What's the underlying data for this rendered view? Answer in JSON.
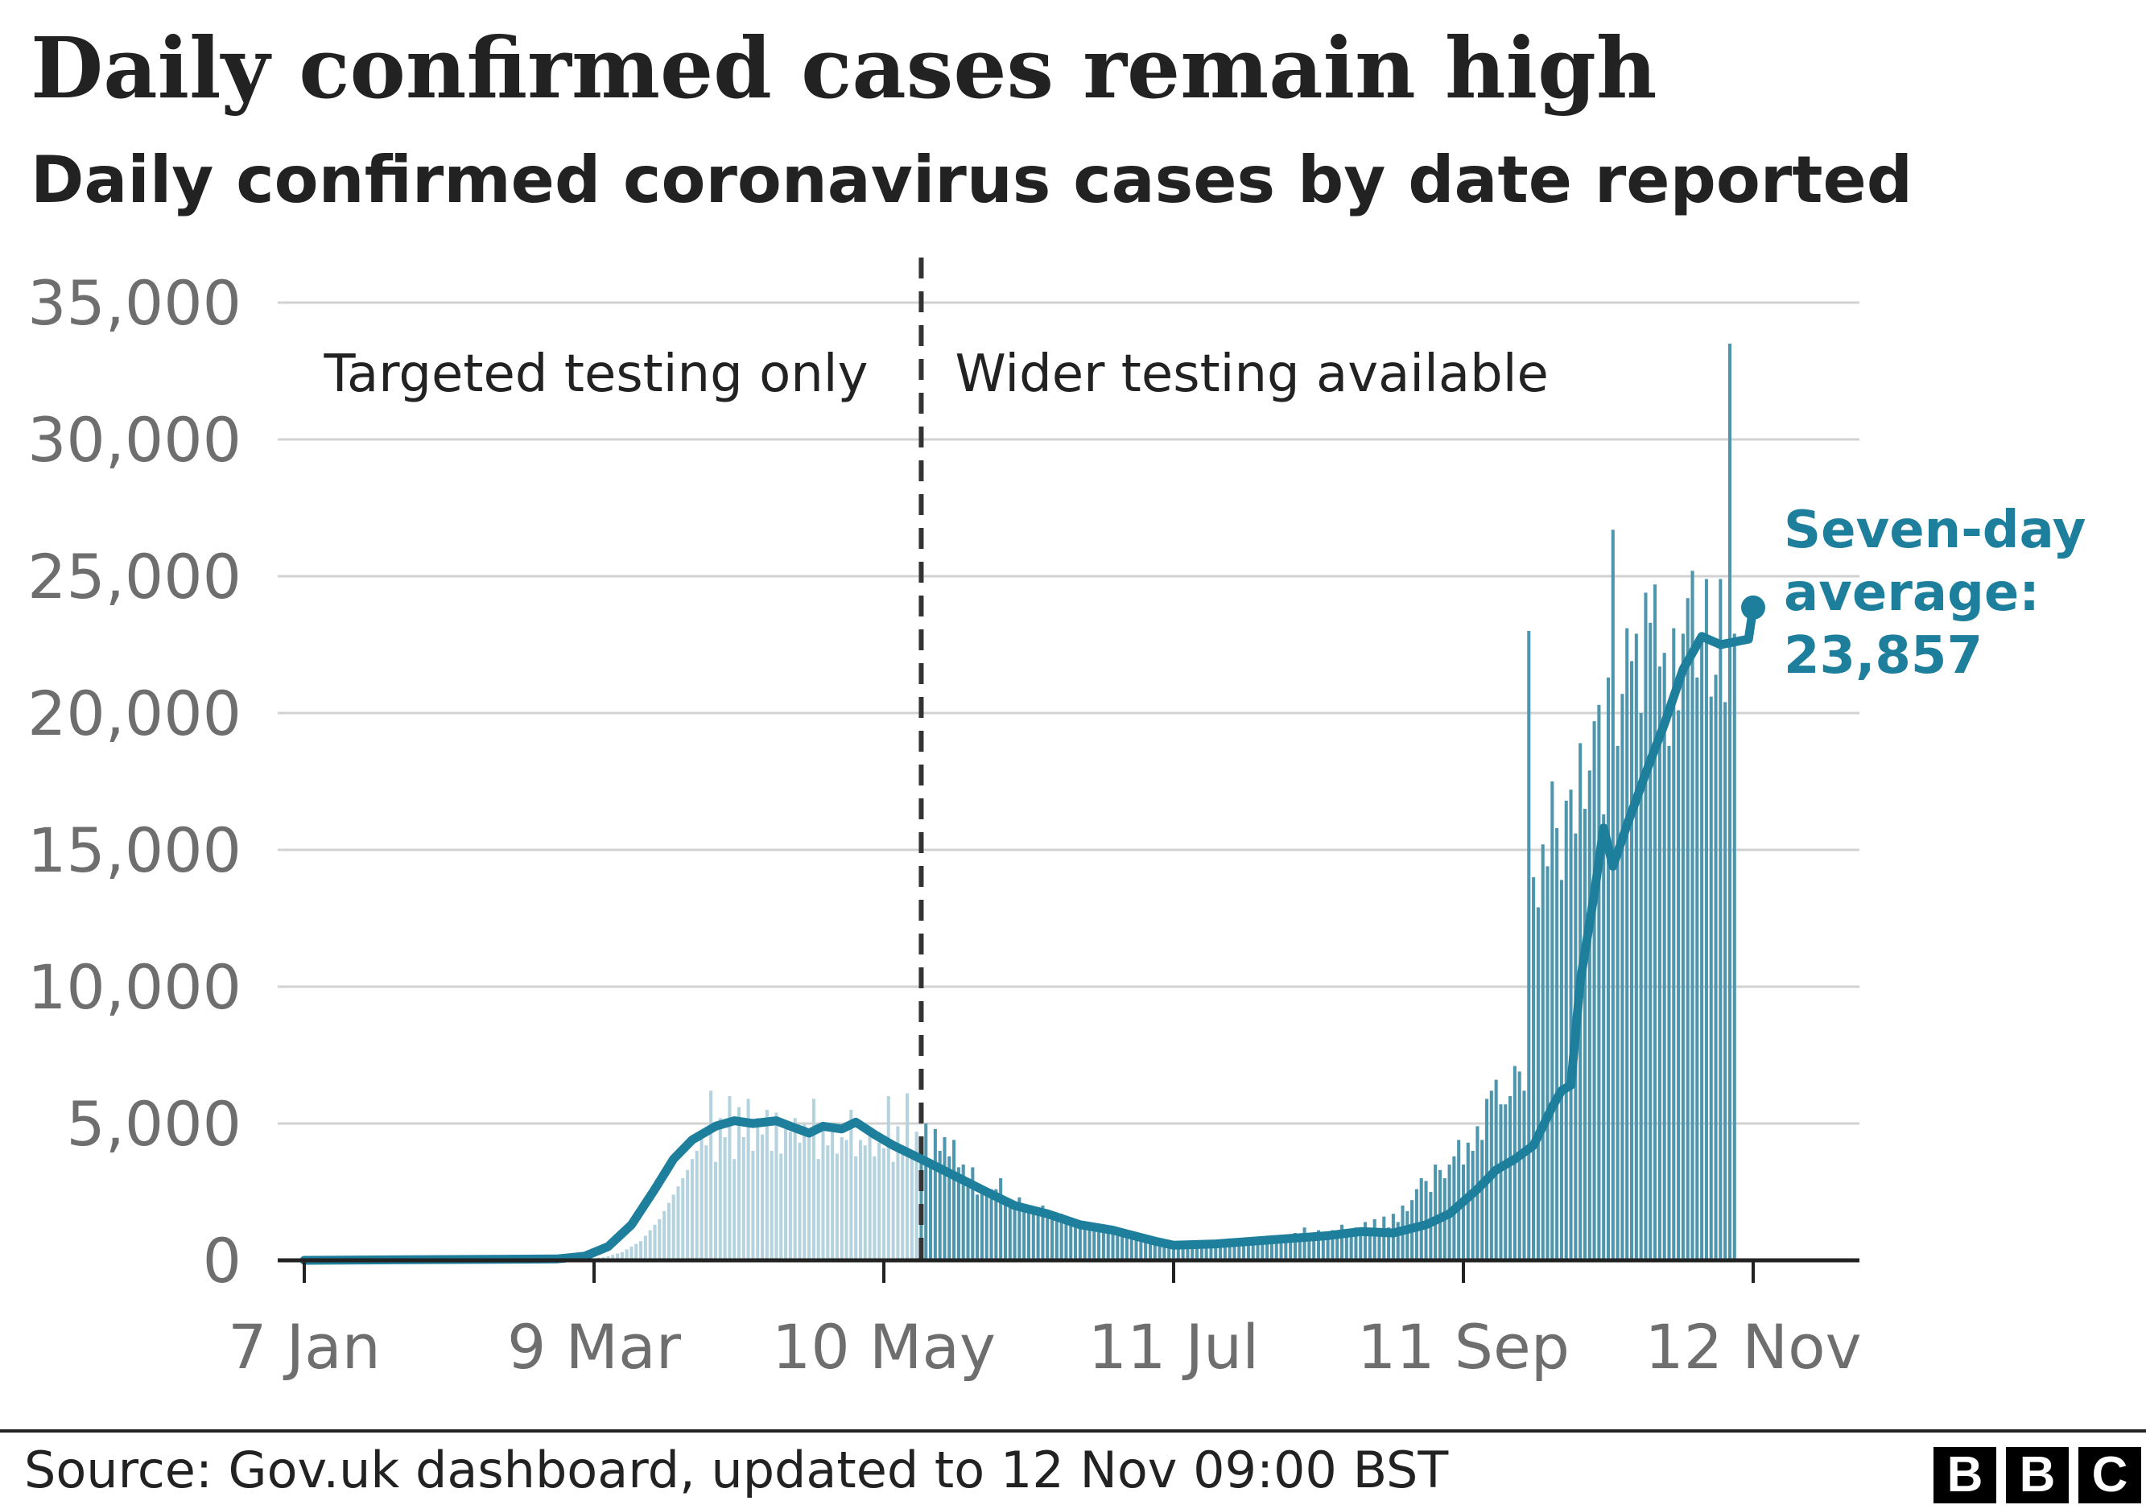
{
  "header": {
    "title": "Daily confirmed cases remain high",
    "subtitle": "Daily confirmed coronavirus cases by date reported"
  },
  "footer": {
    "source": "Source: Gov.uk dashboard, updated to 12 Nov 09:00 BST",
    "logo_letters": [
      "B",
      "B",
      "C"
    ]
  },
  "colors": {
    "bars_early": "#b5d3df",
    "bars_late": "#4e96ad",
    "average_line": "#1e7f9d",
    "annotation": "#1e7f9d",
    "grid": "#d2d2d2",
    "axis": "#222222",
    "tick_label": "#6e6e6e"
  },
  "chart_data": {
    "type": "bar",
    "x_axis": {
      "type": "date",
      "min": "2020-01-07",
      "max": "2020-11-12",
      "tick_labels": [
        "7 Jan",
        "9 Mar",
        "10 May",
        "11 Jul",
        "11 Sep",
        "12 Nov"
      ],
      "tick_dates": [
        "2020-01-07",
        "2020-03-09",
        "2020-05-10",
        "2020-07-11",
        "2020-09-11",
        "2020-11-12"
      ]
    },
    "y_axis": {
      "min": 0,
      "max": 35000,
      "ticks": [
        0,
        5000,
        10000,
        15000,
        20000,
        25000,
        30000,
        35000
      ],
      "tick_labels": [
        "0",
        "5,000",
        "10,000",
        "15,000",
        "20,000",
        "25,000",
        "30,000",
        "35,000"
      ]
    },
    "grid": true,
    "divider": {
      "date": "2020-05-18",
      "left_label": "Targeted testing only",
      "right_label": "Wider testing available"
    },
    "series": [
      {
        "type": "bar",
        "start": "2020-01-31",
        "values": [
          0,
          0,
          0,
          0,
          0,
          0,
          0,
          0,
          0,
          0,
          0,
          0,
          0,
          0,
          0,
          0,
          0,
          0,
          0,
          0,
          0,
          0,
          0,
          0,
          0,
          0,
          0,
          0,
          0,
          5,
          5,
          10,
          15,
          15,
          20,
          35,
          50,
          55,
          80,
          100,
          120,
          150,
          200,
          250,
          300,
          400,
          500,
          600,
          700,
          900,
          1100,
          1300,
          1500,
          1800,
          2100,
          2400,
          2700,
          3000,
          3300,
          3700,
          4000,
          4500,
          4200,
          6200,
          3600,
          5200,
          4500,
          6000,
          3700,
          5600,
          4500,
          5900,
          4000,
          5200,
          4600,
          5500,
          4000,
          5400,
          3900,
          4800,
          4700,
          5200,
          4300,
          5000,
          4700,
          5900,
          3700,
          4900,
          4200,
          5000,
          3900,
          4500,
          4400,
          5500,
          3800,
          4400,
          4200,
          4800,
          3800,
          4300,
          4100,
          6000,
          3600,
          4900,
          4200,
          6100,
          3800,
          4700,
          4400,
          5000,
          3500,
          4800,
          4000,
          4500,
          3800,
          4400,
          3400,
          3500,
          3000,
          3400,
          2400,
          2700,
          2500,
          2600,
          2600,
          3000,
          2200,
          2000,
          2100,
          2300,
          1900,
          1900,
          1700,
          1900,
          2000,
          1800,
          1500,
          1600,
          1700,
          1500,
          1400,
          1300,
          1400,
          1200,
          1200,
          1300,
          1200,
          1300,
          1100,
          1200,
          1200,
          1100,
          1000,
          1000,
          1000,
          900,
          800,
          700,
          700,
          600,
          500,
          500,
          600,
          500,
          600,
          700,
          600,
          700,
          500,
          600,
          700,
          600,
          700,
          600,
          800,
          700,
          700,
          800,
          700,
          800,
          800,
          700,
          900,
          700,
          800,
          900,
          900,
          800,
          1000,
          900,
          1200,
          800,
          1000,
          1100,
          900,
          1000,
          1100,
          1000,
          1300,
          1000,
          1100,
          1200,
          1000,
          1400,
          1000,
          1500,
          1100,
          1600,
          1200,
          1700,
          1400,
          2000,
          1800,
          2200,
          2600,
          3000,
          2900,
          2500,
          3500,
          3300,
          3000,
          3500,
          3800,
          4400,
          3500,
          4300,
          4000,
          4900,
          4400,
          5900,
          6200,
          6600,
          5700,
          5700,
          6000,
          7100,
          6900,
          6200,
          23000,
          14000,
          12900,
          15200,
          14400,
          17500,
          15800,
          13900,
          16800,
          17200,
          15600,
          18900,
          16500,
          17900,
          19700,
          20300,
          16300,
          21300,
          26700,
          18800,
          20700,
          23100,
          21900,
          22900,
          20000,
          24400,
          23300,
          24700,
          21700,
          22200,
          18800,
          23100,
          20100,
          22900,
          24200,
          25200,
          21300,
          22800,
          24900,
          20600,
          21400,
          24900,
          20400,
          33500,
          22900
        ]
      },
      {
        "type": "line",
        "name": "Seven-day average",
        "points": [
          [
            "2020-01-07",
            0
          ],
          [
            "2020-03-01",
            50
          ],
          [
            "2020-03-07",
            150
          ],
          [
            "2020-03-12",
            500
          ],
          [
            "2020-03-17",
            1300
          ],
          [
            "2020-03-22",
            2600
          ],
          [
            "2020-03-26",
            3700
          ],
          [
            "2020-03-30",
            4400
          ],
          [
            "2020-04-04",
            4900
          ],
          [
            "2020-04-08",
            5100
          ],
          [
            "2020-04-12",
            5000
          ],
          [
            "2020-04-17",
            5100
          ],
          [
            "2020-04-20",
            4900
          ],
          [
            "2020-04-24",
            4650
          ],
          [
            "2020-04-27",
            4900
          ],
          [
            "2020-05-01",
            4800
          ],
          [
            "2020-05-04",
            5050
          ],
          [
            "2020-05-08",
            4600
          ],
          [
            "2020-05-12",
            4200
          ],
          [
            "2020-05-18",
            3700
          ],
          [
            "2020-05-25",
            3100
          ],
          [
            "2020-06-01",
            2500
          ],
          [
            "2020-06-07",
            2000
          ],
          [
            "2020-06-14",
            1700
          ],
          [
            "2020-06-21",
            1300
          ],
          [
            "2020-06-28",
            1100
          ],
          [
            "2020-07-07",
            700
          ],
          [
            "2020-07-11",
            550
          ],
          [
            "2020-07-20",
            600
          ],
          [
            "2020-08-01",
            750
          ],
          [
            "2020-08-13",
            900
          ],
          [
            "2020-08-20",
            1050
          ],
          [
            "2020-08-27",
            1000
          ],
          [
            "2020-09-03",
            1300
          ],
          [
            "2020-09-08",
            1700
          ],
          [
            "2020-09-14",
            2600
          ],
          [
            "2020-09-18",
            3300
          ],
          [
            "2020-09-22",
            3700
          ],
          [
            "2020-09-26",
            4200
          ],
          [
            "2020-09-30",
            5600
          ],
          [
            "2020-10-02",
            6200
          ],
          [
            "2020-10-04",
            6400
          ],
          [
            "2020-10-06",
            10200
          ],
          [
            "2020-10-09",
            13400
          ],
          [
            "2020-10-11",
            15800
          ],
          [
            "2020-10-13",
            14400
          ],
          [
            "2020-10-16",
            15900
          ],
          [
            "2020-10-20",
            17800
          ],
          [
            "2020-10-24",
            19600
          ],
          [
            "2020-10-28",
            21600
          ],
          [
            "2020-11-01",
            22800
          ],
          [
            "2020-11-05",
            22500
          ],
          [
            "2020-11-08",
            22600
          ],
          [
            "2020-11-11",
            22700
          ],
          [
            "2020-11-12",
            23857
          ]
        ]
      }
    ],
    "annotation": {
      "lines": [
        "Seven-day",
        "average:",
        "23,857"
      ],
      "date": "2020-11-12",
      "value": 23857
    }
  }
}
